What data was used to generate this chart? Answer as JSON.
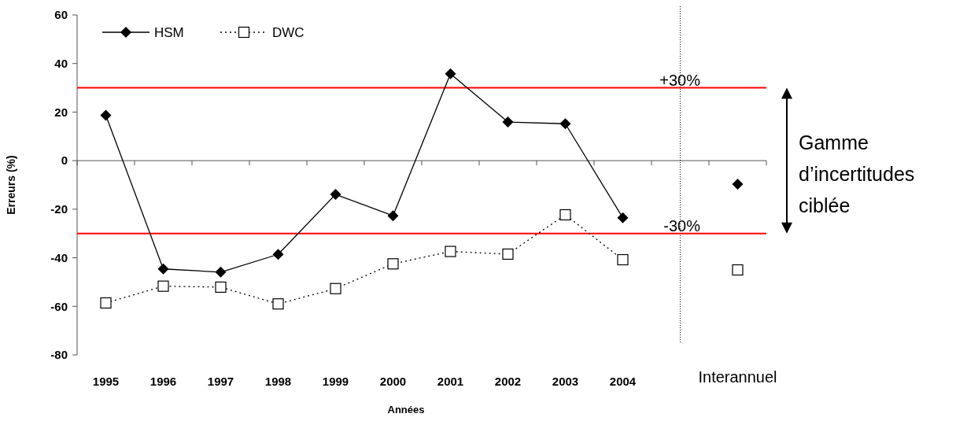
{
  "chart_data": {
    "type": "line",
    "xlabel": "Années",
    "ylabel": "Erreurs (%)",
    "categories": [
      "1995",
      "1996",
      "1997",
      "1998",
      "1999",
      "2000",
      "2001",
      "2002",
      "2003",
      "2004",
      null,
      "Interannuel"
    ],
    "series": [
      {
        "name": "HSM",
        "color": "#000000",
        "marker": "diamond",
        "line_style": "solid",
        "values": [
          18.7,
          -44.6,
          -45.9,
          -38.6,
          -13.9,
          -22.7,
          35.8,
          15.9,
          15.2,
          -23.5,
          null,
          -9.7
        ]
      },
      {
        "name": "DWC",
        "color": "#000000",
        "marker": "square",
        "line_style": "dotted",
        "values": [
          -58.6,
          -51.7,
          -52.1,
          -59,
          -52.7,
          -42.5,
          -37.4,
          -38.5,
          -22.3,
          -40.8,
          null,
          -45
        ]
      }
    ],
    "ylim": [
      -80,
      60
    ],
    "yticks": [
      -80,
      -60,
      -40,
      -20,
      0,
      20,
      40,
      60
    ],
    "legend": "top left",
    "ref_lines": [
      {
        "axis": "y",
        "value": 30,
        "label": "+30%",
        "color": "#ff0000"
      },
      {
        "axis": "y",
        "value": -30,
        "label": "-30%",
        "color": "#ff0000"
      }
    ],
    "annotations": [
      "Gamme d’incertitudes ciblée"
    ]
  }
}
